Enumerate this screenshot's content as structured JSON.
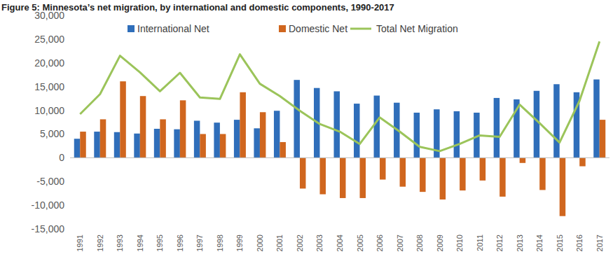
{
  "chart_data": {
    "type": "bar",
    "title": "Figure 5: Minnesota’s net migration, by international and domestic components, 1990-2017",
    "categories": [
      "1991",
      "1992",
      "1993",
      "1994",
      "1995",
      "1996",
      "1997",
      "1998",
      "1999",
      "2000",
      "2001",
      "2002",
      "2003",
      "2004",
      "2005",
      "2006",
      "2007",
      "2008",
      "2009",
      "2010",
      "2011",
      "2012",
      "2013",
      "2014",
      "2015",
      "2016",
      "2017"
    ],
    "series": [
      {
        "name": "International Net",
        "type": "bar",
        "color": "#2f6eba",
        "values": [
          4000,
          5500,
          5400,
          5100,
          6100,
          6000,
          7800,
          7400,
          8000,
          6200,
          9900,
          16400,
          14700,
          14000,
          11400,
          13100,
          11600,
          9500,
          10200,
          9800,
          9500,
          12600,
          12300,
          14100,
          15500,
          13800,
          16500
        ]
      },
      {
        "name": "Domestic Net",
        "type": "bar",
        "color": "#d0661e",
        "values": [
          5500,
          8100,
          16100,
          13000,
          8100,
          12100,
          5000,
          5000,
          13800,
          9600,
          3300,
          -6500,
          -7700,
          -8500,
          -8500,
          -4600,
          -6100,
          -7200,
          -8800,
          -6900,
          -4800,
          -8200,
          -1100,
          -6800,
          -12300,
          -1800,
          8000
        ]
      },
      {
        "name": "Total Net Migration",
        "type": "line",
        "color": "#9bc45a",
        "values": [
          9200,
          13400,
          21500,
          18000,
          14000,
          17900,
          12700,
          12400,
          21800,
          15600,
          13000,
          9900,
          7100,
          5500,
          2900,
          8500,
          5500,
          2300,
          1400,
          2900,
          4700,
          4400,
          11200,
          7300,
          3200,
          12000,
          24500
        ]
      }
    ],
    "ylim": [
      -15000,
      30000
    ],
    "yticks": [
      {
        "value": -15000,
        "label": "-15,000"
      },
      {
        "value": -10000,
        "label": "-10,000"
      },
      {
        "value": -5000,
        "label": "-5,000"
      },
      0,
      {
        "value": 5000,
        "label": "5,000"
      },
      {
        "value": 10000,
        "label": "10,000"
      },
      {
        "value": 15000,
        "label": "15,000"
      },
      {
        "value": 20000,
        "label": "20,000"
      },
      {
        "value": 25000,
        "label": "25,000"
      },
      {
        "value": 30000,
        "label": "30,000"
      }
    ],
    "grid": false,
    "legend": "top"
  }
}
